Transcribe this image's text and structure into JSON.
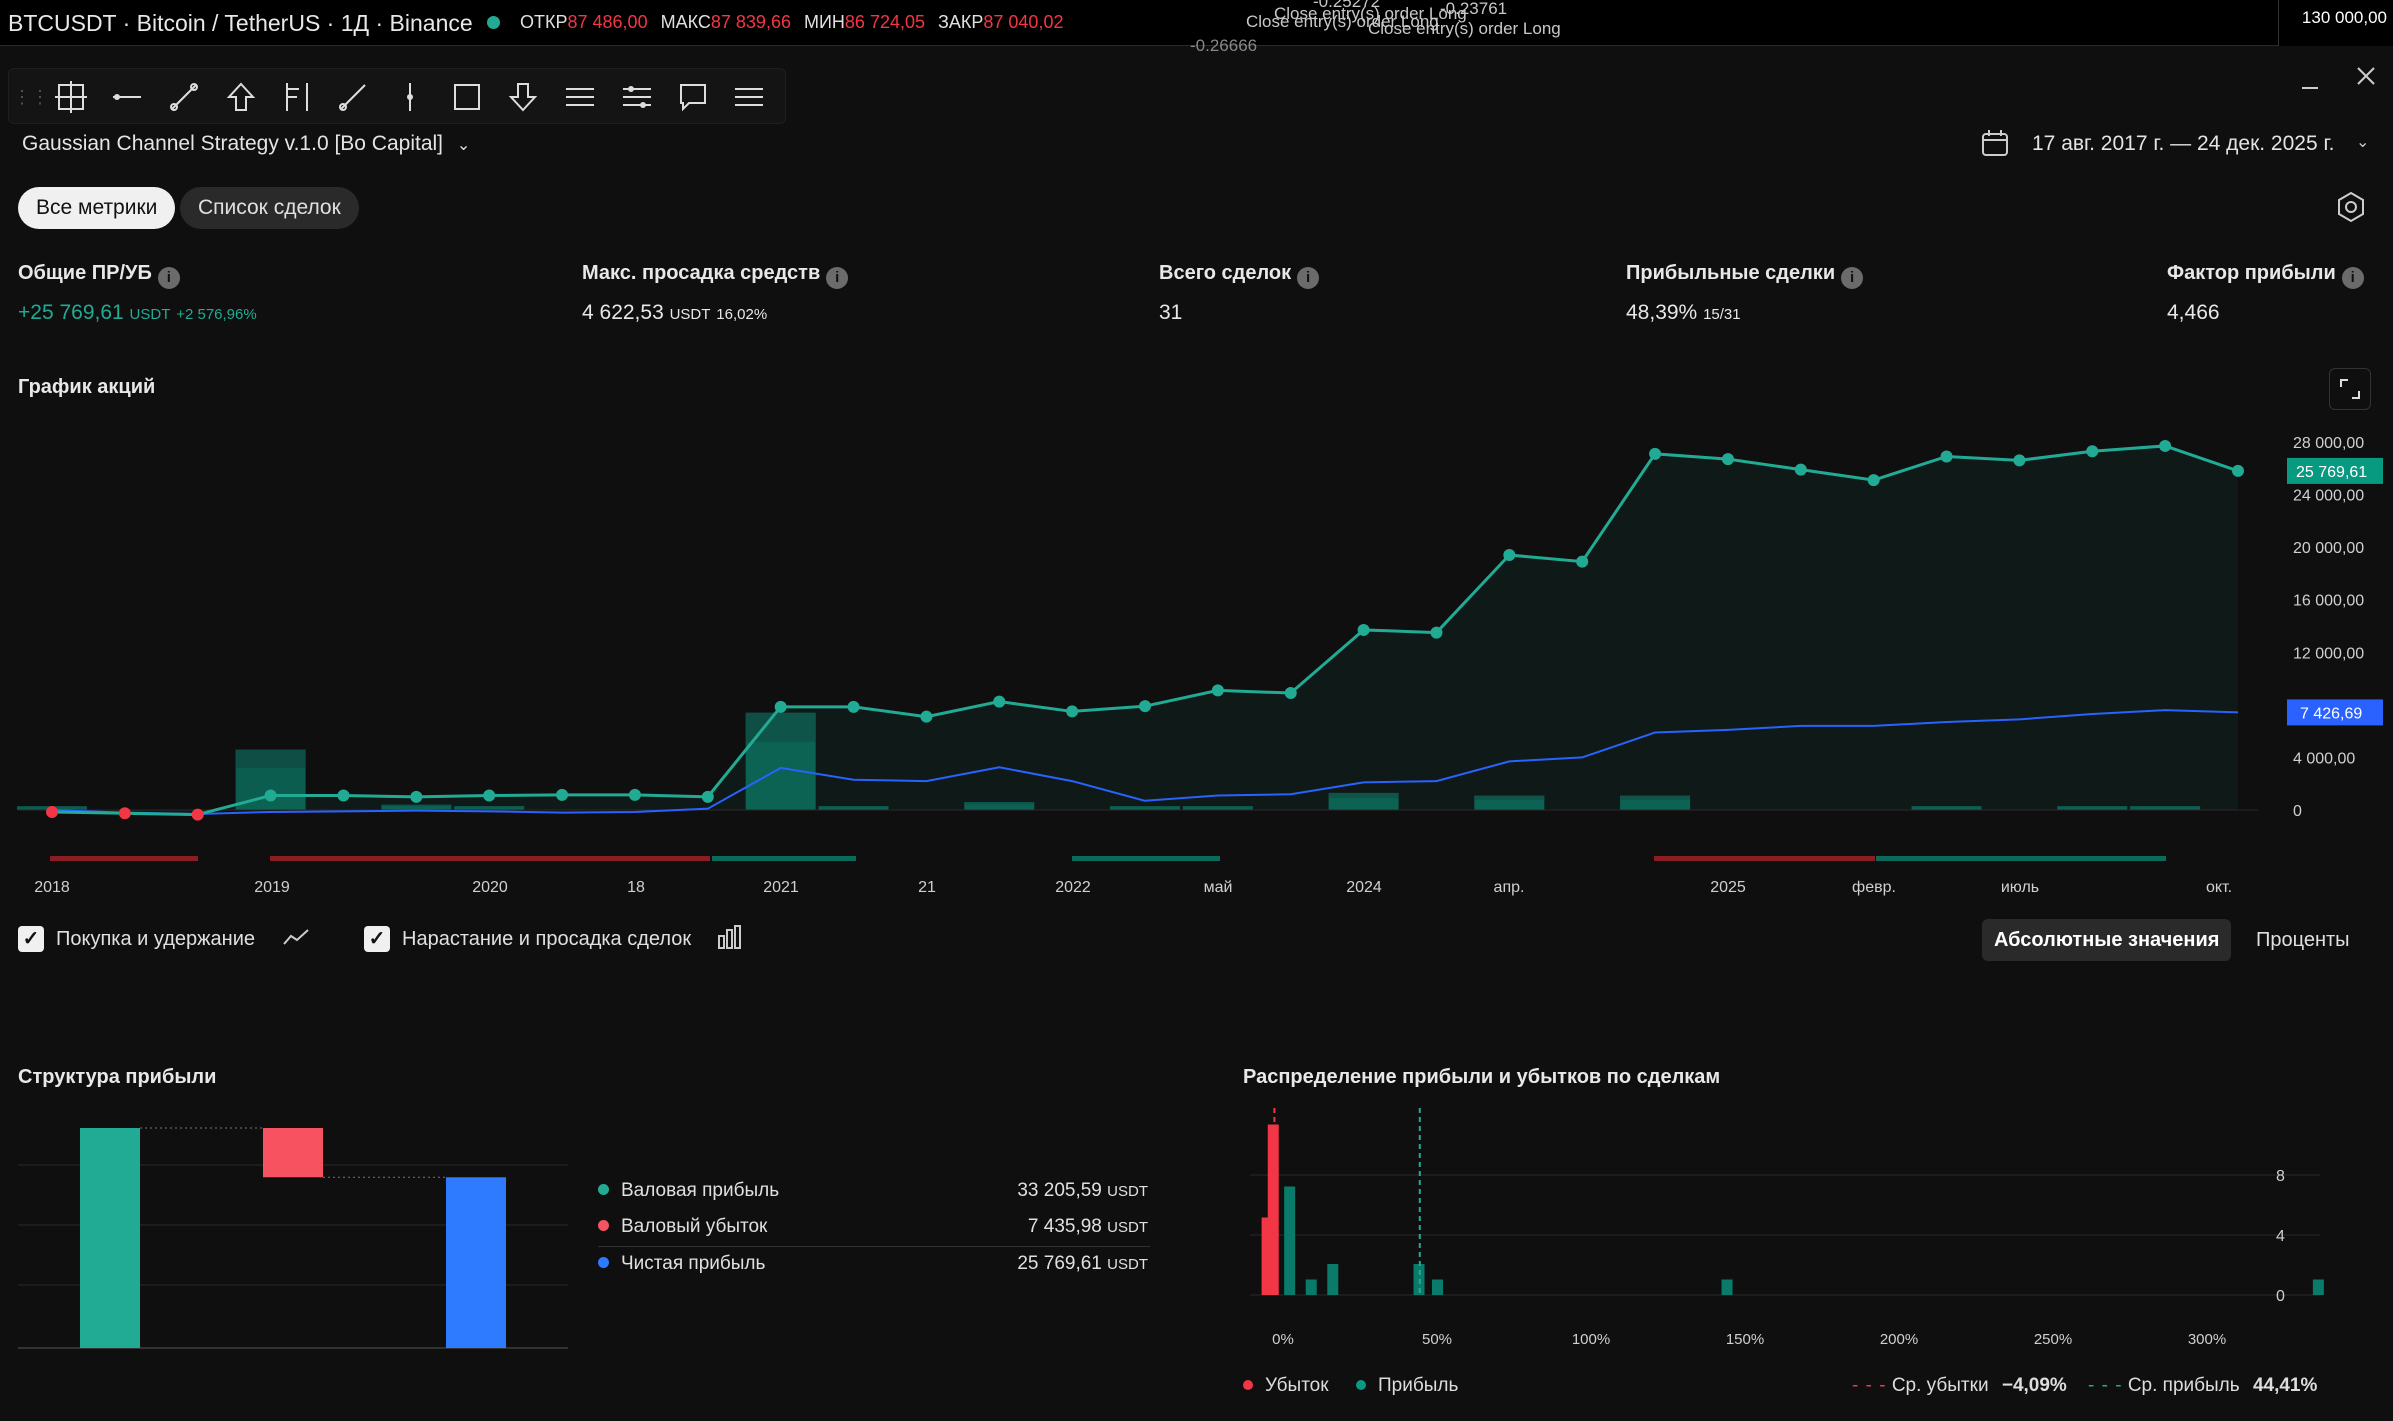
{
  "header": {
    "symbol": "BTCUSDT · Bitcoin / TetherUS · 1Д · Binance",
    "open_label": "ОТКР",
    "open_value": "87 486,00",
    "high_label": "МАКС",
    "high_value": "87 839,66",
    "low_label": "МИН",
    "low_value": "86 724,05",
    "close_label": "ЗАКР",
    "close_value": "87 040,02",
    "overlay_texts": [
      "-0.25272",
      "Close entry(s) order Long",
      "-0.23761",
      "Close entry(s) order Long",
      "Close entry(s) order Long",
      "-0.26666"
    ],
    "price_label": "130 000,00"
  },
  "strategy": {
    "name": "Gaussian Channel Strategy v.1.0 [Bo Capital]",
    "date_range": "17 авг. 2017 г. — 24 дек. 2025 г."
  },
  "tabs": {
    "all_metrics": "Все метрики",
    "trade_list": "Список сделок"
  },
  "metrics": [
    {
      "title": "Общие ПР/УБ",
      "value": "+25 769,61",
      "unit": "USDT",
      "extra": "+2 576,96%"
    },
    {
      "title": "Макс. просадка средств",
      "value": "4 622,53",
      "unit": "USDT",
      "extra": "16,02%"
    },
    {
      "title": "Всего сделок",
      "value": "31",
      "unit": "",
      "extra": ""
    },
    {
      "title": "Прибыльные сделки",
      "value": "48,39%",
      "unit": "",
      "extra": "15/31"
    },
    {
      "title": "Фактор прибыли",
      "value": "4,466",
      "unit": "",
      "extra": ""
    }
  ],
  "equity_section": {
    "title": "График акций",
    "buy_hold_label": "Покупка и удержание",
    "runup_label": "Нарастание и просадка сделок",
    "abs_button": "Абсолютные значения",
    "pct_button": "Проценты"
  },
  "chart_data": [
    {
      "type": "line",
      "title": "График акций",
      "x_tick_labels": [
        "2018",
        "2019",
        "2020",
        "18",
        "2021",
        "21",
        "2022",
        "май",
        "2024",
        "апр.",
        "2025",
        "февр.",
        "июль",
        "окт."
      ],
      "y_tick_labels": [
        "28 000,00",
        "24 000,00",
        "20 000,00",
        "16 000,00",
        "12 000,00",
        "8 000,00",
        "4 000,00",
        "0"
      ],
      "ylim": [
        0,
        28000
      ],
      "equity_last_label": "25 769,61",
      "buyhold_last_label": "7 426,69",
      "series": [
        {
          "name": "equity",
          "color": "#22ab94",
          "values": [
            -150,
            -250,
            -350,
            1100,
            1100,
            1000,
            1100,
            1150,
            1150,
            1000,
            7850,
            7850,
            7100,
            8250,
            7500,
            7900,
            9100,
            8900,
            13700,
            13500,
            19400,
            18900,
            27100,
            26700,
            25900,
            25100,
            26900,
            26600,
            27300,
            27700,
            25800
          ]
        },
        {
          "name": "buy_hold",
          "color": "#2962ff",
          "values": [
            0,
            -200,
            -300,
            -150,
            -100,
            -50,
            -100,
            -200,
            -150,
            100,
            3200,
            2300,
            2200,
            3250,
            2200,
            700,
            1100,
            1200,
            2100,
            2200,
            3700,
            4000,
            5900,
            6100,
            6400,
            6400,
            6700,
            6900,
            7300,
            7600,
            7426.69
          ]
        }
      ],
      "runup_bars": [
        100,
        0,
        0,
        4600,
        0,
        400,
        300,
        0,
        0,
        0,
        7400,
        300,
        0,
        600,
        0,
        300,
        300,
        0,
        1300,
        0,
        1100,
        0,
        1100,
        0,
        0,
        0,
        200,
        0,
        100,
        100,
        0
      ],
      "grid": false
    },
    {
      "type": "bar",
      "title": "Структура прибыли",
      "categories": [
        "Валовая прибыль",
        "Валовый убыток",
        "Чистая прибыль"
      ],
      "values": [
        33205.59,
        7435.98,
        25769.61
      ],
      "colors": [
        "#22ab94",
        "#f7525f",
        "#2e7bff"
      ],
      "value_labels": [
        "33 205,59",
        "7 435,98",
        "25 769,61"
      ],
      "unit": "USDT"
    },
    {
      "type": "bar",
      "title": "Распределение прибыли и убытков по сделкам",
      "x_tick_labels": [
        "0%",
        "50%",
        "100%",
        "150%",
        "200%",
        "250%",
        "300%"
      ],
      "y_tick_labels": [
        "8",
        "4",
        "0"
      ],
      "ylim": [
        0,
        10
      ],
      "loss_bins": [
        {
          "x": -5,
          "count": 5
        },
        {
          "x": -3,
          "count": 11
        }
      ],
      "profit_bins": [
        {
          "x": 2,
          "count": 7
        },
        {
          "x": 9,
          "count": 1
        },
        {
          "x": 16,
          "count": 2
        },
        {
          "x": 44,
          "count": 2
        },
        {
          "x": 50,
          "count": 1
        },
        {
          "x": 144,
          "count": 1
        },
        {
          "x": 336,
          "count": 1
        }
      ],
      "avg_loss": -4.09,
      "avg_profit": 44.41,
      "legend": {
        "loss": "Убыток",
        "profit": "Прибыль",
        "avg_loss_label": "Ср. убытки",
        "avg_loss_value": "−4,09%",
        "avg_profit_label": "Ср. прибыль",
        "avg_profit_value": "44,41%"
      }
    }
  ],
  "profit_structure": {
    "title": "Структура прибыли"
  },
  "distribution": {
    "title": "Распределение прибыли и убытков по сделкам"
  }
}
